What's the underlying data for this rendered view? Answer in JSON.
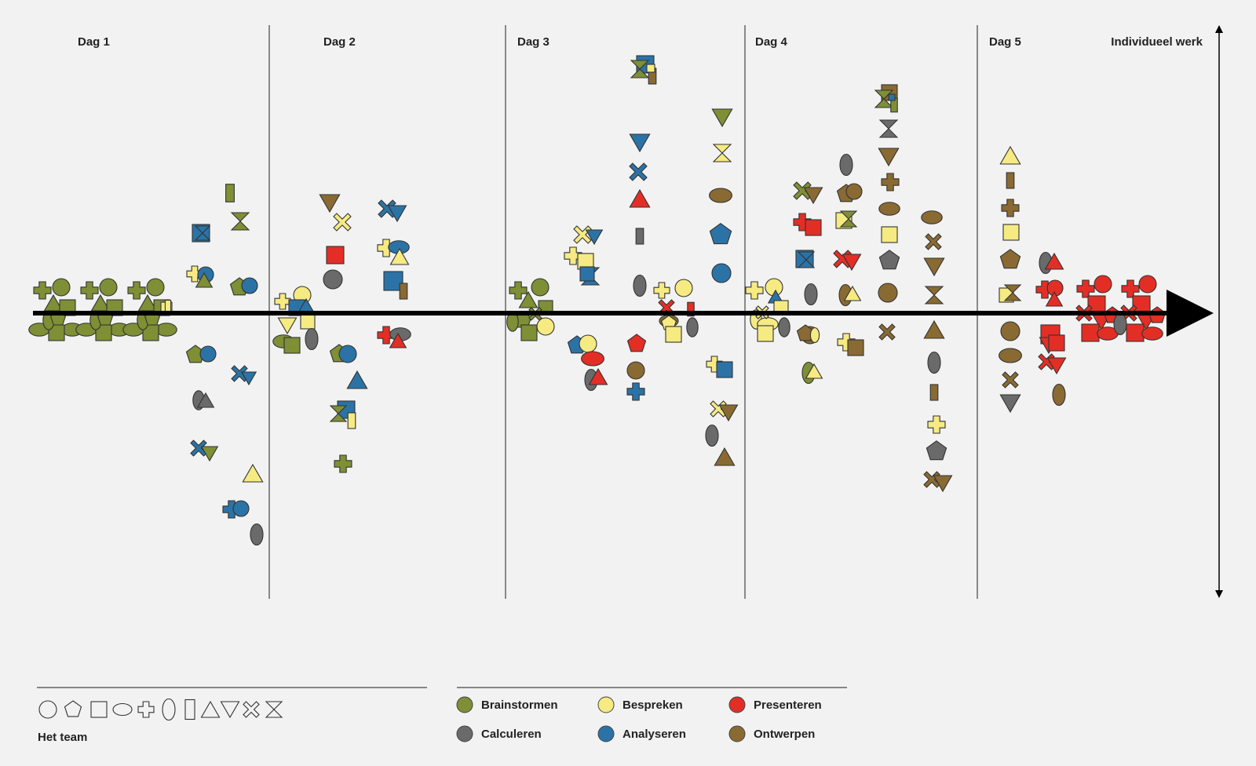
{
  "days": [
    "Dag 1",
    "Dag 2",
    "Dag 3",
    "Dag 4",
    "Dag 5"
  ],
  "axis_label": "Individueel werk",
  "team_label": "Het team",
  "activities": [
    {
      "key": "brainstorm",
      "label": "Brainstormen",
      "color": "#7e8f35"
    },
    {
      "key": "bespreken",
      "label": "Bespreken",
      "color": "#f6ea82"
    },
    {
      "key": "presenteren",
      "label": "Presenteren",
      "color": "#e32e26"
    },
    {
      "key": "calculeren",
      "label": "Calculeren",
      "color": "#6a6a6a"
    },
    {
      "key": "analyseren",
      "label": "Analyseren",
      "color": "#2b73a6"
    },
    {
      "key": "ontwerpen",
      "label": "Ontwerpen",
      "color": "#8a6a33"
    }
  ],
  "team_shape_icons": [
    "circle-icon",
    "pentagon-icon",
    "square-icon",
    "ellipse-icon",
    "plus-icon",
    "tall-oval-icon",
    "tall-rect-icon",
    "triangle-up-icon",
    "triangle-down-icon",
    "cross-icon",
    "hourglass-icon"
  ]
}
